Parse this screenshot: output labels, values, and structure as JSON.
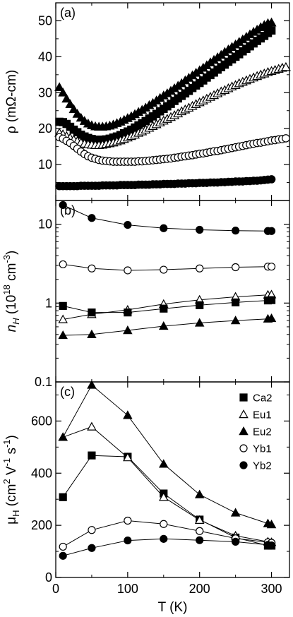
{
  "chart_data": [
    {
      "type": "scatter",
      "panel_label": "(a)",
      "ylabel": "ρ (mΩ-cm)",
      "xlim": [
        0,
        325
      ],
      "ylim": [
        0,
        55
      ],
      "yticks": [
        10,
        20,
        30,
        40,
        50
      ],
      "series": [
        {
          "marker": "filled-triangle",
          "x": [
            5,
            10,
            15,
            20,
            25,
            30,
            35,
            40,
            45,
            50,
            55,
            60,
            65,
            70,
            75,
            80,
            85,
            90,
            95,
            100,
            105,
            110,
            115,
            120,
            125,
            130,
            135,
            140,
            145,
            150,
            155,
            160,
            165,
            170,
            175,
            180,
            185,
            190,
            195,
            200,
            205,
            210,
            215,
            220,
            225,
            230,
            235,
            240,
            245,
            250,
            255,
            260,
            265,
            270,
            275,
            280,
            285,
            290,
            295,
            300
          ],
          "y": [
            31.5,
            30,
            28.3,
            26.8,
            25.4,
            24.1,
            23,
            22.1,
            21.4,
            20.9,
            20.6,
            20.5,
            20.5,
            20.6,
            20.8,
            21.1,
            21.5,
            21.9,
            22.4,
            22.9,
            23.4,
            24,
            24.6,
            25.2,
            25.8,
            26.5,
            27.1,
            27.8,
            28.5,
            29.2,
            29.8,
            30.5,
            31.2,
            31.9,
            32.6,
            33.4,
            34.1,
            34.8,
            35.5,
            36.2,
            36.9,
            37.6,
            38.4,
            39.1,
            39.8,
            40.5,
            41.3,
            42,
            42.7,
            43.4,
            44.1,
            44.8,
            45.5,
            46.2,
            46.9,
            47.5,
            48.2,
            48.8,
            49.3,
            49.5
          ]
        },
        {
          "marker": "filled-square",
          "x": [
            5,
            10,
            15,
            20,
            25,
            30,
            35,
            40,
            45,
            50,
            55,
            60,
            65,
            70,
            75,
            80,
            85,
            90,
            95,
            100,
            105,
            110,
            115,
            120,
            125,
            130,
            135,
            140,
            145,
            150,
            155,
            160,
            165,
            170,
            175,
            180,
            185,
            190,
            195,
            200,
            205,
            210,
            215,
            220,
            225,
            230,
            235,
            240,
            245,
            250,
            255,
            260,
            265,
            270,
            275,
            280,
            285,
            290,
            295,
            300
          ],
          "y": [
            21.9,
            21.8,
            21.3,
            20.5,
            19.7,
            19,
            18.3,
            17.8,
            17.4,
            17.1,
            16.9,
            16.9,
            16.9,
            17,
            17.2,
            17.5,
            17.8,
            18.2,
            18.7,
            19.2,
            19.7,
            20.3,
            20.9,
            21.5,
            22.1,
            22.8,
            23.4,
            24.1,
            24.8,
            25.5,
            26.2,
            26.9,
            27.7,
            28.4,
            29.1,
            29.8,
            30.5,
            31.3,
            32,
            32.7,
            33.4,
            34.2,
            34.9,
            35.6,
            36.4,
            37.1,
            37.8,
            38.6,
            39.3,
            40,
            40.7,
            41.5,
            42.2,
            42.9,
            43.7,
            44.4,
            45.1,
            45.8,
            46.6,
            47.3
          ]
        },
        {
          "marker": "open-triangle",
          "x": [
            5,
            10,
            15,
            20,
            25,
            30,
            35,
            40,
            45,
            50,
            55,
            60,
            65,
            70,
            75,
            80,
            85,
            90,
            95,
            100,
            105,
            110,
            115,
            120,
            125,
            130,
            135,
            140,
            145,
            150,
            155,
            160,
            165,
            170,
            175,
            180,
            185,
            190,
            195,
            200,
            205,
            210,
            215,
            220,
            225,
            230,
            235,
            240,
            245,
            250,
            255,
            260,
            265,
            270,
            275,
            280,
            285,
            290,
            295,
            300,
            305,
            310,
            315,
            320
          ],
          "y": [
            18.8,
            18.4,
            17.9,
            17.4,
            16.9,
            16.5,
            16.1,
            15.8,
            15.6,
            15.5,
            15.4,
            15.4,
            15.5,
            15.7,
            15.9,
            16.1,
            16.4,
            16.7,
            17.1,
            17.5,
            17.9,
            18.3,
            18.8,
            19.2,
            19.7,
            20.2,
            20.7,
            21.2,
            21.7,
            22.2,
            22.7,
            23.2,
            23.7,
            24.2,
            24.8,
            25.3,
            25.8,
            26.3,
            26.8,
            27.3,
            27.8,
            28.3,
            28.8,
            29.3,
            29.8,
            30.3,
            30.7,
            31.2,
            31.7,
            32.1,
            32.6,
            33,
            33.4,
            33.8,
            34.2,
            34.6,
            35,
            35.3,
            35.7,
            36,
            36.3,
            36.6,
            36.9,
            37.1
          ]
        },
        {
          "marker": "open-circle",
          "x": [
            5,
            10,
            15,
            20,
            25,
            30,
            35,
            40,
            45,
            50,
            55,
            60,
            65,
            70,
            75,
            80,
            85,
            90,
            95,
            100,
            105,
            110,
            115,
            120,
            125,
            130,
            135,
            140,
            145,
            150,
            155,
            160,
            165,
            170,
            175,
            180,
            185,
            190,
            195,
            200,
            205,
            210,
            215,
            220,
            225,
            230,
            235,
            240,
            245,
            250,
            255,
            260,
            265,
            270,
            275,
            280,
            285,
            290,
            295,
            300,
            305,
            310,
            315,
            320
          ],
          "y": [
            17.6,
            17.2,
            16.6,
            16,
            15.2,
            14.4,
            13.6,
            12.9,
            12.3,
            11.9,
            11.6,
            11.3,
            11.1,
            11,
            10.9,
            10.8,
            10.8,
            10.8,
            10.8,
            10.8,
            10.8,
            10.8,
            10.9,
            10.9,
            11,
            11.1,
            11.2,
            11.3,
            11.4,
            11.5,
            11.6,
            11.7,
            11.9,
            12,
            12.2,
            12.3,
            12.5,
            12.6,
            12.8,
            13,
            13.1,
            13.3,
            13.5,
            13.7,
            13.8,
            14,
            14.2,
            14.4,
            14.6,
            14.8,
            15,
            15.2,
            15.4,
            15.6,
            15.8,
            16,
            16.1,
            16.3,
            16.5,
            16.7,
            16.8,
            17,
            17.1,
            17.3
          ]
        },
        {
          "marker": "filled-circle",
          "x": [
            5,
            10,
            15,
            20,
            25,
            30,
            35,
            40,
            45,
            50,
            55,
            60,
            65,
            70,
            75,
            80,
            85,
            90,
            95,
            100,
            105,
            110,
            115,
            120,
            125,
            130,
            135,
            140,
            145,
            150,
            155,
            160,
            165,
            170,
            175,
            180,
            185,
            190,
            195,
            200,
            205,
            210,
            215,
            220,
            225,
            230,
            235,
            240,
            245,
            250,
            255,
            260,
            265,
            270,
            275,
            280,
            285,
            290,
            295,
            300
          ],
          "y": [
            4,
            4,
            4,
            4,
            4,
            4,
            4.1,
            4.1,
            4.1,
            4.1,
            4.1,
            4.1,
            4.2,
            4.2,
            4.2,
            4.2,
            4.2,
            4.3,
            4.3,
            4.3,
            4.3,
            4.3,
            4.4,
            4.4,
            4.4,
            4.4,
            4.5,
            4.5,
            4.5,
            4.6,
            4.6,
            4.6,
            4.6,
            4.7,
            4.7,
            4.7,
            4.8,
            4.8,
            4.8,
            4.9,
            4.9,
            4.9,
            5,
            5,
            5,
            5.1,
            5.1,
            5.2,
            5.2,
            5.3,
            5.3,
            5.3,
            5.4,
            5.4,
            5.5,
            5.5,
            5.6,
            5.7,
            5.8,
            5.9
          ]
        }
      ]
    },
    {
      "type": "line",
      "panel_label": "(b)",
      "ylabel": "n_H (10^18 cm^-3)",
      "xlim": [
        0,
        325
      ],
      "ylim": [
        0.1,
        20
      ],
      "yscale": "log",
      "yticks": [
        0.1,
        1,
        10
      ],
      "ytick_labels": [
        "0.1",
        "1",
        "10"
      ],
      "series": [
        {
          "marker": "filled-circle",
          "x": [
            10,
            50,
            100,
            150,
            200,
            250,
            295,
            300
          ],
          "y": [
            17.5,
            12,
            9.8,
            8.9,
            8.5,
            8.3,
            8.2,
            8.2
          ]
        },
        {
          "marker": "open-circle",
          "x": [
            10,
            50,
            100,
            150,
            200,
            250,
            295,
            300
          ],
          "y": [
            3.1,
            2.75,
            2.6,
            2.65,
            2.75,
            2.85,
            2.9,
            2.9
          ]
        },
        {
          "marker": "open-triangle",
          "x": [
            10,
            50,
            100,
            150,
            200,
            250,
            295,
            300
          ],
          "y": [
            0.62,
            0.72,
            0.82,
            0.97,
            1.1,
            1.2,
            1.27,
            1.28
          ]
        },
        {
          "marker": "filled-square",
          "x": [
            10,
            50,
            100,
            150,
            200,
            250,
            295,
            300
          ],
          "y": [
            0.92,
            0.76,
            0.76,
            0.85,
            0.94,
            1.02,
            1.08,
            1.09
          ]
        },
        {
          "marker": "filled-triangle",
          "x": [
            10,
            50,
            100,
            150,
            200,
            250,
            295,
            300
          ],
          "y": [
            0.39,
            0.4,
            0.45,
            0.51,
            0.56,
            0.6,
            0.63,
            0.64
          ]
        }
      ]
    },
    {
      "type": "line",
      "panel_label": "(c)",
      "ylabel": "μH (cm2 V-1 s-1)",
      "xlabel": "T (K)",
      "xlim": [
        0,
        325
      ],
      "ylim": [
        0,
        750
      ],
      "yticks": [
        0,
        200,
        400,
        600
      ],
      "xticks": [
        0,
        100,
        200,
        300
      ],
      "legend_position": "top-right",
      "series": [
        {
          "name": "Ca2",
          "marker": "filled-square",
          "x": [
            10,
            50,
            100,
            150,
            200,
            250,
            295,
            300
          ],
          "y": [
            308,
            468,
            463,
            322,
            222,
            153,
            122,
            122
          ]
        },
        {
          "name": "Eu1",
          "marker": "open-triangle",
          "x": [
            10,
            50,
            100,
            150,
            200,
            250,
            295,
            300
          ],
          "y": [
            538,
            578,
            460,
            308,
            220,
            160,
            137,
            135
          ]
        },
        {
          "name": "Eu2",
          "marker": "filled-triangle",
          "x": [
            10,
            50,
            100,
            150,
            200,
            250,
            295,
            300
          ],
          "y": [
            538,
            738,
            622,
            435,
            318,
            248,
            207,
            203
          ]
        },
        {
          "name": "Yb1",
          "marker": "open-circle",
          "x": [
            10,
            50,
            100,
            150,
            200,
            250,
            295,
            300
          ],
          "y": [
            118,
            182,
            218,
            205,
            178,
            150,
            135,
            133
          ]
        },
        {
          "name": "Yb2",
          "marker": "filled-circle",
          "x": [
            10,
            50,
            100,
            150,
            200,
            250,
            295,
            300
          ],
          "y": [
            83,
            113,
            142,
            148,
            143,
            137,
            125,
            123
          ]
        }
      ]
    }
  ]
}
